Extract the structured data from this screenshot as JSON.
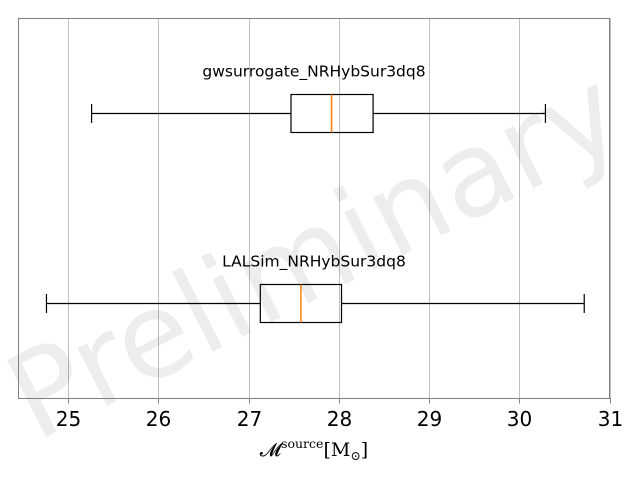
{
  "chart_data": {
    "type": "boxplot",
    "orientation": "horizontal",
    "watermark": "Preliminary",
    "xlabel": {
      "main": "𝓜",
      "sup": "source",
      "unit": "[M",
      "unit_sub": "⊙",
      "unit_close": "]"
    },
    "xlim": [
      24.45,
      31.0
    ],
    "xticks": [
      25,
      26,
      27,
      28,
      29,
      30,
      31
    ],
    "grid": {
      "x": true,
      "y": false
    },
    "colors": {
      "box": "#000000",
      "median": "#ff7f0e",
      "grid": "#b0b0b0",
      "spine": "#808080"
    },
    "series": [
      {
        "name": "gwsurrogate_NRHybSur3dq8",
        "whisker_low": 25.26,
        "q1": 27.47,
        "median": 27.92,
        "q3": 28.38,
        "whisker_high": 30.29
      },
      {
        "name": "LALSim_NRHybSur3dq8",
        "whisker_low": 24.76,
        "q1": 27.13,
        "median": 27.58,
        "q3": 28.03,
        "whisker_high": 30.72
      }
    ]
  }
}
